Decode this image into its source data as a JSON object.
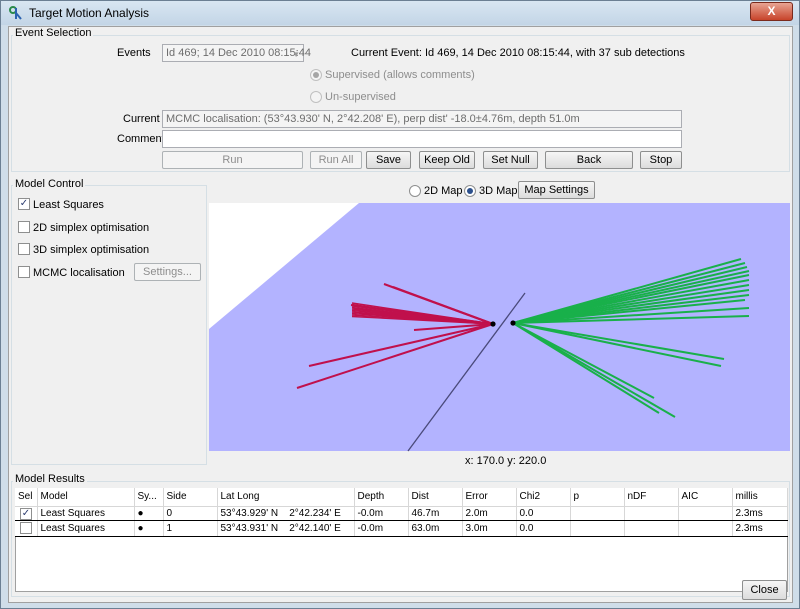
{
  "window": {
    "title": "Target Motion Analysis",
    "close_glyph": "X"
  },
  "event_selection": {
    "group_label": "Event Selection",
    "events_label": "Events",
    "events_value": "Id 469; 14 Dec 2010 08:15:44",
    "current_event_text": "Current Event: Id 469, 14 Dec 2010 08:15:44, with 37 sub detections",
    "supervised_label": "Supervised (allows comments)",
    "unsupervised_label": "Un-supervised",
    "current_label": "Current",
    "current_value": "MCMC localisation: (53°43.930' N, 2°42.208' E), perp dist' -18.0±4.76m, depth 51.0m",
    "comment_label": "Comment",
    "comment_value": "",
    "buttons": {
      "run": "Run",
      "run_all": "Run All",
      "save": "Save",
      "keep_old": "Keep Old",
      "set_null": "Set Null",
      "back": "Back",
      "stop": "Stop"
    }
  },
  "model_control": {
    "group_label": "Model Control",
    "items": [
      {
        "label": "Least Squares",
        "checked": true
      },
      {
        "label": "2D simplex optimisation",
        "checked": false
      },
      {
        "label": "3D simplex optimisation",
        "checked": false
      },
      {
        "label": "MCMC localisation",
        "checked": false
      }
    ],
    "settings_button": "Settings..."
  },
  "map_controls": {
    "map2d_label": "2D Map",
    "map3d_label": "3D Map",
    "selected": "3D Map",
    "settings_button": "Map Settings"
  },
  "map": {
    "coords_text": "x: 170.0 y: 220.0",
    "colors": {
      "plane": "#b3b3ff",
      "side0": "#c0104c",
      "side1": "#19b04a",
      "track": "#4a4a7a"
    }
  },
  "results": {
    "group_label": "Model Results",
    "columns": [
      "Sel",
      "Model",
      "Sy...",
      "Side",
      "Lat Long",
      "Depth",
      "Dist",
      "Error",
      "Chi2",
      "p",
      "nDF",
      "AIC",
      "millis"
    ],
    "rows": [
      {
        "sel": true,
        "model": "Least Squares",
        "symbol": "●",
        "side": "0",
        "latlong": "53°43.929' N    2°42.234' E",
        "depth": "-0.0m",
        "dist": "46.7m",
        "error": "2.0m",
        "chi2": "0.0",
        "p": "",
        "ndf": "",
        "aic": "",
        "millis": "2.3ms"
      },
      {
        "sel": false,
        "model": "Least Squares",
        "symbol": "●",
        "side": "1",
        "latlong": "53°43.931' N    2°42.140' E",
        "depth": "-0.0m",
        "dist": "63.0m",
        "error": "3.0m",
        "chi2": "0.0",
        "p": "",
        "ndf": "",
        "aic": "",
        "millis": "2.3ms"
      }
    ]
  },
  "footer": {
    "close_button": "Close"
  }
}
